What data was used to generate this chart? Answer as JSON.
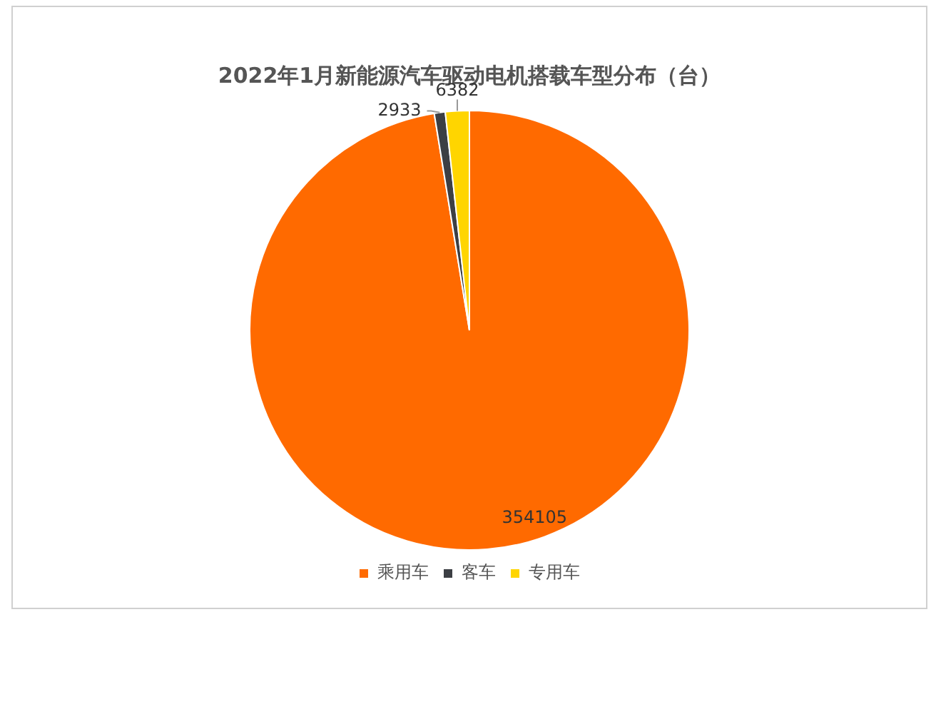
{
  "chart_data": {
    "type": "pie",
    "title": "2022年1月新能源汽车驱动电机搭载车型分布（台）",
    "categories": [
      "乘用车",
      "客车",
      "专用车"
    ],
    "values": [
      354105,
      2933,
      6382
    ],
    "colors": [
      "#ff6a00",
      "#3c3f44",
      "#ffd500"
    ],
    "data_labels": true,
    "legend": "bottom"
  }
}
